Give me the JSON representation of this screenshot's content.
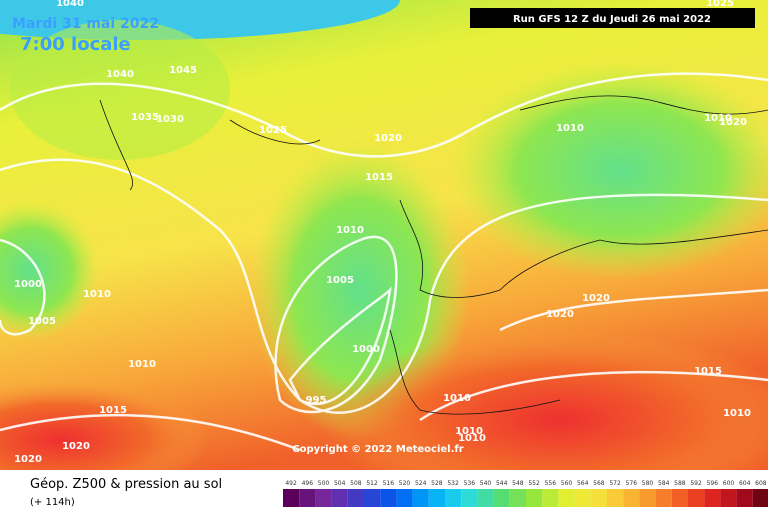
{
  "header": {
    "date": "Mardi 31 mai 2022",
    "time": "7:00 locale",
    "run": "Run GFS 12 Z du Jeudi 26 mai 2022"
  },
  "map": {
    "isobar_labels": [
      "1040",
      "1045",
      "1040",
      "1035",
      "1030",
      "1025",
      "1020",
      "1015",
      "1010",
      "1005",
      "1000",
      "995",
      "1010",
      "1010",
      "1020",
      "1025",
      "1020",
      "1020",
      "1015",
      "1010",
      "1010",
      "1010",
      "1010",
      "1000",
      "1010",
      "1005",
      "1010",
      "1015",
      "1020",
      "1020"
    ]
  },
  "copyright": "Copyright © 2022 Meteociel.fr",
  "footer": {
    "title": "Géop. Z500 & pression au sol",
    "lead": "(+ 114h)",
    "scale": [
      492,
      496,
      500,
      504,
      508,
      512,
      516,
      520,
      524,
      528,
      532,
      536,
      540,
      544,
      548,
      552,
      556,
      560,
      564,
      568,
      572,
      576,
      580,
      584,
      588,
      592,
      596,
      600,
      604,
      608,
      612
    ]
  }
}
